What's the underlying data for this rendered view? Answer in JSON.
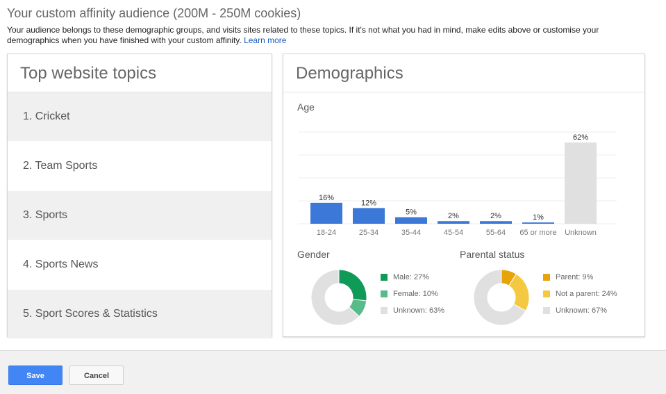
{
  "header": {
    "title": "Your custom affinity audience (200M - 250M cookies)",
    "description": "Your audience belongs to these demographic groups, and visits sites related to these topics. If it's not what you had in mind, make edits above or customise your demographics when you have finished with your custom affinity.",
    "learn_more": "Learn more"
  },
  "topics": {
    "title": "Top website topics",
    "items": [
      "1. Cricket",
      "2. Team Sports",
      "3. Sports",
      "4. Sports News",
      "5. Sport Scores & Statistics"
    ]
  },
  "demographics": {
    "title": "Demographics",
    "age_label": "Age",
    "gender_label": "Gender",
    "parental_label": "Parental status"
  },
  "chart_data": [
    {
      "type": "bar",
      "title": "Age",
      "categories": [
        "18-24",
        "25-34",
        "35-44",
        "45-54",
        "55-64",
        "65 or more",
        "Unknown"
      ],
      "values": [
        16,
        12,
        5,
        2,
        2,
        1,
        62
      ],
      "data_labels": [
        "16%",
        "12%",
        "5%",
        "2%",
        "2%",
        "1%",
        "62%"
      ],
      "colors": [
        "#3c78d8",
        "#3c78d8",
        "#3c78d8",
        "#3c78d8",
        "#3c78d8",
        "#3c78d8",
        "#e0e0e0"
      ],
      "grid": true
    },
    {
      "type": "pie",
      "title": "Gender",
      "donut": true,
      "slices": [
        {
          "label": "Male: 27%",
          "value": 27,
          "color": "#109a58"
        },
        {
          "label": "Female: 10%",
          "value": 10,
          "color": "#57bb8a"
        },
        {
          "label": "Unknown: 63%",
          "value": 63,
          "color": "#e0e0e0"
        }
      ]
    },
    {
      "type": "pie",
      "title": "Parental status",
      "donut": true,
      "slices": [
        {
          "label": "Parent: 9%",
          "value": 9,
          "color": "#e6a40a"
        },
        {
          "label": "Not a parent: 24%",
          "value": 24,
          "color": "#f5c842"
        },
        {
          "label": "Unknown: 67%",
          "value": 67,
          "color": "#e0e0e0"
        }
      ]
    }
  ],
  "footer": {
    "save_label": "Save",
    "cancel_label": "Cancel"
  }
}
